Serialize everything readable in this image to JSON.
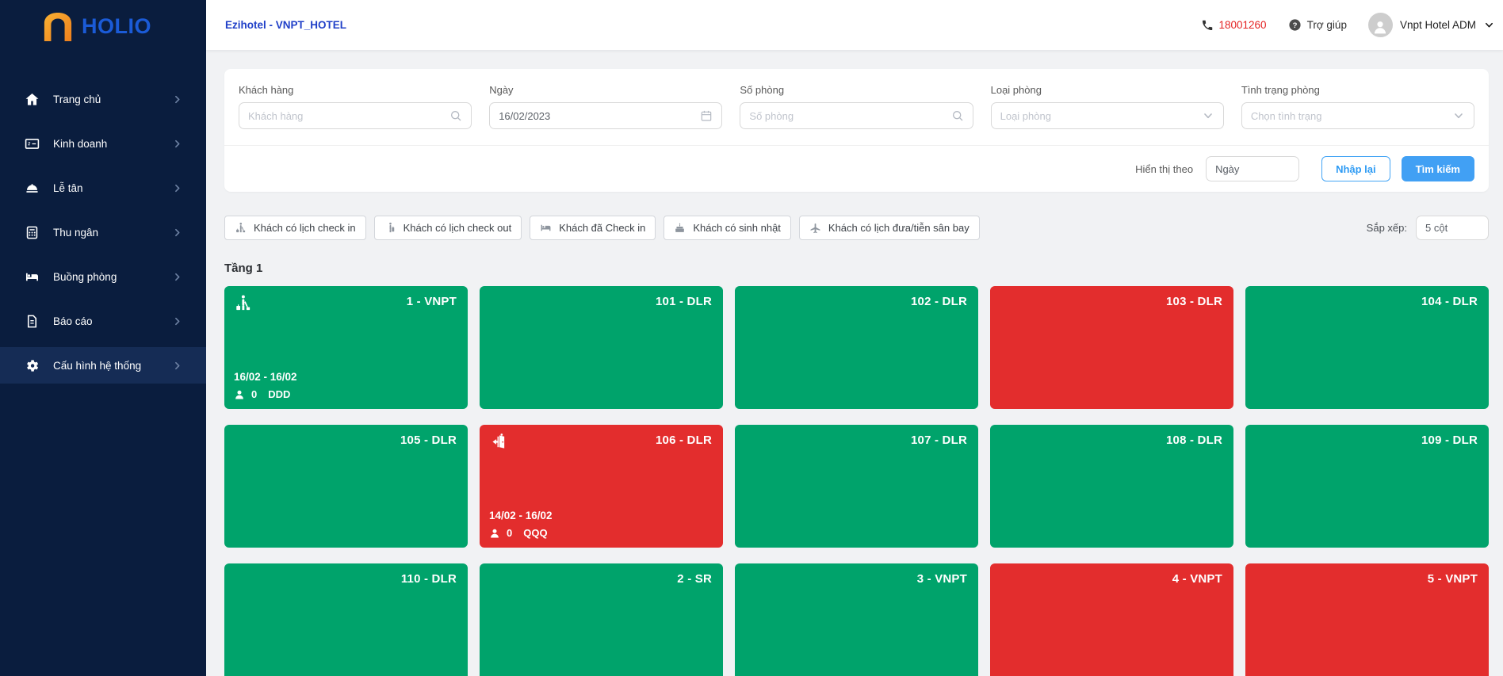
{
  "brand": {
    "name": "HOLIO"
  },
  "sidebar": {
    "items": [
      {
        "key": "home",
        "icon": "home-icon",
        "label": "Trang chủ",
        "active": false
      },
      {
        "key": "business",
        "icon": "sales-card-icon",
        "label": "Kinh doanh",
        "active": false
      },
      {
        "key": "reception",
        "icon": "cloche-icon",
        "label": "Lễ tân",
        "active": false
      },
      {
        "key": "cashier",
        "icon": "calculator-icon",
        "label": "Thu ngân",
        "active": false
      },
      {
        "key": "housekeeping",
        "icon": "bed-icon",
        "label": "Buồng phòng",
        "active": false
      },
      {
        "key": "reports",
        "icon": "document-icon",
        "label": "Báo cáo",
        "active": false
      },
      {
        "key": "system-config",
        "icon": "gear-icon",
        "label": "Cấu hình hệ thống",
        "active": true
      }
    ]
  },
  "header": {
    "breadcrumb": "Ezihotel - VNPT_HOTEL",
    "phone": "18001260",
    "help_label": "Trợ giúp",
    "user_name": "Vnpt Hotel ADM"
  },
  "filters": {
    "fields": [
      {
        "key": "customer",
        "label": "Khách hàng",
        "placeholder": "Khách hàng",
        "value": "",
        "trail_icon": "search-icon"
      },
      {
        "key": "date",
        "label": "Ngày",
        "placeholder": "",
        "value": "16/02/2023",
        "trail_icon": "calendar-icon"
      },
      {
        "key": "room-number",
        "label": "Số phòng",
        "placeholder": "Số phòng",
        "value": "",
        "trail_icon": "search-icon"
      },
      {
        "key": "room-type",
        "label": "Loại phòng",
        "placeholder": "Loại phòng",
        "value": "",
        "trail_icon": "chevron-down-icon"
      },
      {
        "key": "room-status",
        "label": "Tình trạng phòng",
        "placeholder": "Chọn tình trạng",
        "value": "",
        "trail_icon": "chevron-down-icon"
      }
    ],
    "display_by_label": "Hiển thị theo",
    "display_by_value": "Ngày",
    "reset_label": "Nhập lại",
    "search_label": "Tìm kiếm"
  },
  "quick_filters": [
    {
      "key": "check-in-schedule",
      "icon": "guest-arrive-icon",
      "label": "Khách có lịch check in"
    },
    {
      "key": "check-out-schedule",
      "icon": "guest-leave-icon",
      "label": "Khách có lịch check out"
    },
    {
      "key": "checked-in",
      "icon": "bed-icon",
      "label": "Khách đã Check in"
    },
    {
      "key": "birthday",
      "icon": "cake-icon",
      "label": "Khách có sinh nhật"
    },
    {
      "key": "airport-transfer",
      "icon": "plane-icon",
      "label": "Khách có lịch đưa/tiễn sân bay"
    }
  ],
  "sort": {
    "label": "Sắp xếp:",
    "value": "5 cột"
  },
  "floor": {
    "title": "Tầng 1"
  },
  "rooms": [
    {
      "label": "1 - VNPT",
      "status": "green",
      "badge": "guest-arrive-icon",
      "date_range": "16/02 - 16/02",
      "guest_count": "0",
      "guest_code": "DDD"
    },
    {
      "label": "101 - DLR",
      "status": "green"
    },
    {
      "label": "102 - DLR",
      "status": "green"
    },
    {
      "label": "103 - DLR",
      "status": "red"
    },
    {
      "label": "104 - DLR",
      "status": "green"
    },
    {
      "label": "105 - DLR",
      "status": "green"
    },
    {
      "label": "106 - DLR",
      "status": "red",
      "badge": "door-exit-icon",
      "date_range": "14/02 - 16/02",
      "guest_count": "0",
      "guest_code": "QQQ"
    },
    {
      "label": "107 - DLR",
      "status": "green"
    },
    {
      "label": "108 - DLR",
      "status": "green"
    },
    {
      "label": "109 - DLR",
      "status": "green"
    },
    {
      "label": "110 - DLR",
      "status": "green"
    },
    {
      "label": "2 - SR",
      "status": "green"
    },
    {
      "label": "3 - VNPT",
      "status": "green"
    },
    {
      "label": "4 - VNPT",
      "status": "red"
    },
    {
      "label": "5 - VNPT",
      "status": "red"
    }
  ],
  "colors": {
    "room_available": "#00a36b",
    "room_occupied": "#e32d2d",
    "accent": "#41a0f4",
    "sidebar_bg": "#0a1d3e",
    "phone_red": "#e42222",
    "breadcrumb_blue": "#2040c8"
  }
}
